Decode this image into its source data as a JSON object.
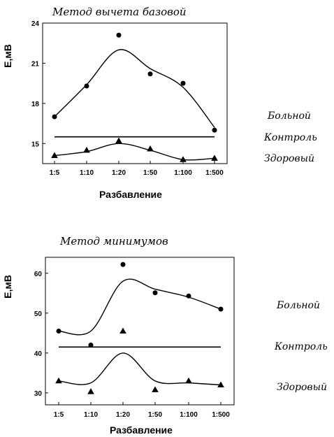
{
  "chart_data": [
    {
      "type": "line",
      "title": "Метод вычета базовой",
      "xlabel": "Разбавление",
      "ylabel": "Е,мВ",
      "categories": [
        "1:5",
        "1:10",
        "1:20",
        "1:50",
        "1:100",
        "1:500"
      ],
      "yticks": [
        "15",
        "18",
        "21",
        "24"
      ],
      "ylim": [
        13.5,
        24
      ],
      "grid": false,
      "series": [
        {
          "name": "Больной",
          "marker": "circle",
          "values": [
            17.0,
            19.3,
            23.1,
            20.2,
            19.5,
            16.0
          ],
          "curve": [
            17.0,
            19.4,
            22.0,
            20.6,
            19.2,
            16.2
          ]
        },
        {
          "name": "Контроль",
          "marker": "none",
          "values": [
            15.5,
            15.5,
            15.5,
            15.5,
            15.5,
            15.5
          ],
          "curve": [
            15.5,
            15.5,
            15.5,
            15.5,
            15.5,
            15.5
          ]
        },
        {
          "name": "Здоровый",
          "marker": "triangle",
          "values": [
            14.1,
            14.5,
            15.2,
            14.6,
            13.8,
            13.9
          ],
          "curve": [
            14.1,
            14.4,
            15.0,
            14.5,
            13.8,
            13.9
          ]
        }
      ]
    },
    {
      "type": "line",
      "title": "Метод минимумов",
      "xlabel": "Разбавление",
      "ylabel": "Е,мВ",
      "categories": [
        "1:5",
        "1:10",
        "1:20",
        "1:50",
        "1:100",
        "1:500"
      ],
      "yticks": [
        "30",
        "40",
        "50",
        "60"
      ],
      "ylim": [
        27,
        64
      ],
      "grid": false,
      "series": [
        {
          "name": "Больной",
          "marker": "circle",
          "values": [
            45.5,
            42.0,
            62.2,
            55.1,
            54.3,
            51.0
          ],
          "curve": [
            45.5,
            45.5,
            58.0,
            56.0,
            54.0,
            51.0
          ]
        },
        {
          "name": "Контроль",
          "marker": "none",
          "values": [
            41.5,
            41.5,
            41.5,
            41.5,
            41.5,
            41.5
          ],
          "curve": [
            41.5,
            41.5,
            41.5,
            41.5,
            41.5,
            41.5
          ]
        },
        {
          "name": "Здоровый",
          "marker": "triangle",
          "values": [
            33.0,
            30.3,
            45.5,
            30.8,
            33.0,
            32.0
          ],
          "curve": [
            33.0,
            32.5,
            40.0,
            33.0,
            32.5,
            32.0
          ]
        }
      ]
    }
  ]
}
